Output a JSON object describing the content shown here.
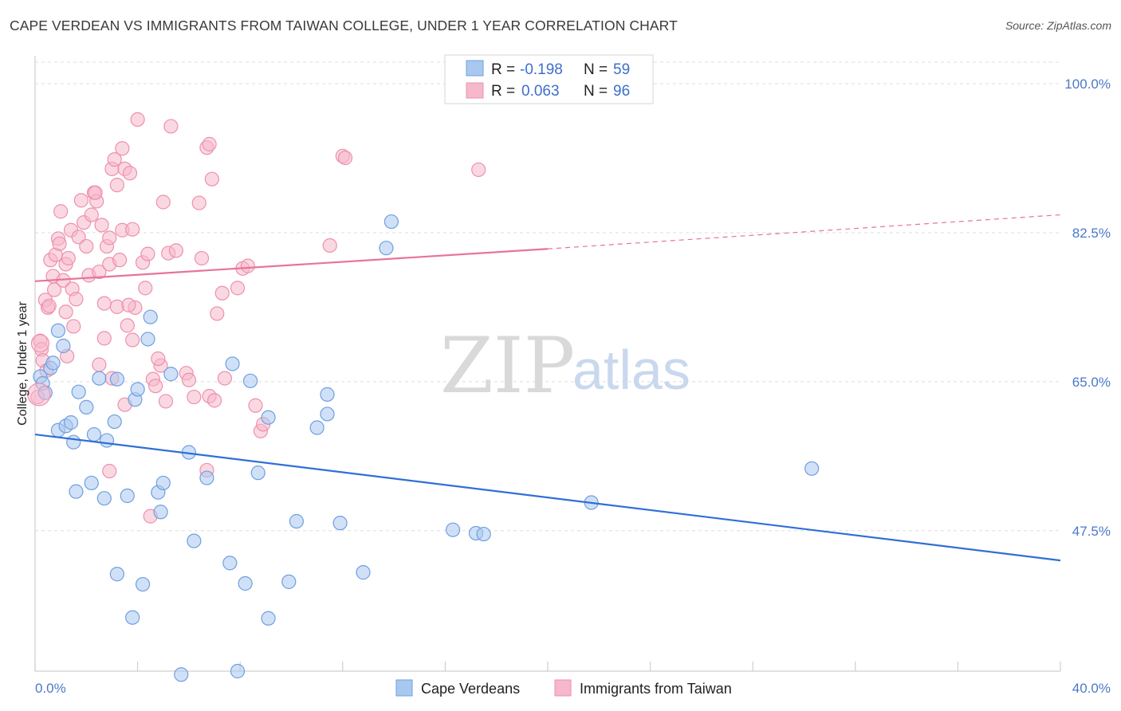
{
  "header": {
    "title": "CAPE VERDEAN VS IMMIGRANTS FROM TAIWAN COLLEGE, UNDER 1 YEAR CORRELATION CHART",
    "source": "Source: ZipAtlas.com"
  },
  "watermark": {
    "zip": "ZIP",
    "atlas": "atlas"
  },
  "legend": {
    "rows": [
      {
        "r_label": "R =",
        "r_value": "-0.198",
        "n_label": "N =",
        "n_value": "59",
        "color": "#a9c8f0"
      },
      {
        "r_label": "R =",
        "r_value": "0.063",
        "n_label": "N =",
        "n_value": "96",
        "color": "#f6b8cb"
      }
    ]
  },
  "chart_data": {
    "type": "scatter",
    "title": "CAPE VERDEAN VS IMMIGRANTS FROM TAIWAN COLLEGE, UNDER 1 YEAR CORRELATION CHART",
    "xlabel": "",
    "ylabel": "College, Under 1 year",
    "xlim": [
      0,
      40
    ],
    "ylim": [
      31,
      103
    ],
    "x_tick_labels": [
      "0.0%",
      "40.0%"
    ],
    "y_ticks": [
      47.5,
      65.0,
      82.5,
      100.0
    ],
    "y_tick_labels": [
      "47.5%",
      "65.0%",
      "82.5%",
      "100.0%"
    ],
    "grid": true,
    "series": [
      {
        "name": "Cape Verdeans",
        "color": "#a9c8f0",
        "edge": "#6f9fe0",
        "trend": {
          "x0": 0,
          "y0": 58.8,
          "x1": 40,
          "y1": 44.0,
          "color": "#2f6fd6"
        },
        "points": [
          [
            0.2,
            65.6
          ],
          [
            0.3,
            64.8
          ],
          [
            0.4,
            63.7
          ],
          [
            0.6,
            66.6
          ],
          [
            0.7,
            67.2
          ],
          [
            0.9,
            71.0
          ],
          [
            0.9,
            59.3
          ],
          [
            1.1,
            69.2
          ],
          [
            1.2,
            59.8
          ],
          [
            1.4,
            60.2
          ],
          [
            1.5,
            57.9
          ],
          [
            1.6,
            52.1
          ],
          [
            1.7,
            63.8
          ],
          [
            2.0,
            62.0
          ],
          [
            2.2,
            53.1
          ],
          [
            2.3,
            58.8
          ],
          [
            2.5,
            65.4
          ],
          [
            2.7,
            51.3
          ],
          [
            2.8,
            58.1
          ],
          [
            3.1,
            60.3
          ],
          [
            3.2,
            65.3
          ],
          [
            3.2,
            42.4
          ],
          [
            3.6,
            51.6
          ],
          [
            3.8,
            37.3
          ],
          [
            3.9,
            62.9
          ],
          [
            4.0,
            64.1
          ],
          [
            4.2,
            41.2
          ],
          [
            4.4,
            70.0
          ],
          [
            4.5,
            72.6
          ],
          [
            4.8,
            52.0
          ],
          [
            4.9,
            49.7
          ],
          [
            5.0,
            53.1
          ],
          [
            5.3,
            65.9
          ],
          [
            6.0,
            56.7
          ],
          [
            6.2,
            46.3
          ],
          [
            6.7,
            53.7
          ],
          [
            7.6,
            43.7
          ],
          [
            7.7,
            67.1
          ],
          [
            7.9,
            31.0
          ],
          [
            8.2,
            41.3
          ],
          [
            8.4,
            65.1
          ],
          [
            8.7,
            54.3
          ],
          [
            9.1,
            60.8
          ],
          [
            9.1,
            37.2
          ],
          [
            9.9,
            41.5
          ],
          [
            10.2,
            48.6
          ],
          [
            11.0,
            59.6
          ],
          [
            11.4,
            63.5
          ],
          [
            11.4,
            61.2
          ],
          [
            11.9,
            48.4
          ],
          [
            12.8,
            42.6
          ],
          [
            13.7,
            80.7
          ],
          [
            13.9,
            83.8
          ],
          [
            16.3,
            47.6
          ],
          [
            17.2,
            47.2
          ],
          [
            17.5,
            47.1
          ],
          [
            21.7,
            50.8
          ],
          [
            30.3,
            54.8
          ],
          [
            5.7,
            30.6
          ]
        ]
      },
      {
        "name": "Immigrants from Taiwan",
        "color": "#f6b8cb",
        "edge": "#ee90ae",
        "trend": {
          "x0": 0,
          "y0": 76.8,
          "x1": 20,
          "y1": 80.6,
          "dash_x1": 40,
          "dash_y1": 84.6,
          "color": "#e8739a"
        },
        "points": [
          [
            0.1,
            63.2
          ],
          [
            0.2,
            69.8
          ],
          [
            0.25,
            68.8
          ],
          [
            0.3,
            67.5
          ],
          [
            0.4,
            74.6
          ],
          [
            0.5,
            73.7
          ],
          [
            0.55,
            73.9
          ],
          [
            0.6,
            79.3
          ],
          [
            0.7,
            77.4
          ],
          [
            0.75,
            75.8
          ],
          [
            0.8,
            79.9
          ],
          [
            0.9,
            81.8
          ],
          [
            1.0,
            85.0
          ],
          [
            1.1,
            76.9
          ],
          [
            1.2,
            73.2
          ],
          [
            1.2,
            78.8
          ],
          [
            1.3,
            79.5
          ],
          [
            1.4,
            82.8
          ],
          [
            1.45,
            75.9
          ],
          [
            1.5,
            71.5
          ],
          [
            1.6,
            74.7
          ],
          [
            1.7,
            82.0
          ],
          [
            1.8,
            86.3
          ],
          [
            1.9,
            83.7
          ],
          [
            2.0,
            80.9
          ],
          [
            2.1,
            77.5
          ],
          [
            2.2,
            84.6
          ],
          [
            2.3,
            87.2
          ],
          [
            2.4,
            86.2
          ],
          [
            2.5,
            77.9
          ],
          [
            2.5,
            67.0
          ],
          [
            2.6,
            83.4
          ],
          [
            2.7,
            70.1
          ],
          [
            2.7,
            74.2
          ],
          [
            2.8,
            80.9
          ],
          [
            2.9,
            54.5
          ],
          [
            2.9,
            78.8
          ],
          [
            2.9,
            81.9
          ],
          [
            3.0,
            90.0
          ],
          [
            3.0,
            65.4
          ],
          [
            3.1,
            91.1
          ],
          [
            3.2,
            88.1
          ],
          [
            3.2,
            73.8
          ],
          [
            3.3,
            79.3
          ],
          [
            3.4,
            82.8
          ],
          [
            3.4,
            92.4
          ],
          [
            3.5,
            90.0
          ],
          [
            3.5,
            62.3
          ],
          [
            3.6,
            71.6
          ],
          [
            3.7,
            89.5
          ],
          [
            3.8,
            69.9
          ],
          [
            3.8,
            82.9
          ],
          [
            3.9,
            73.7
          ],
          [
            4.0,
            95.8
          ],
          [
            4.2,
            79.0
          ],
          [
            4.3,
            76.0
          ],
          [
            4.4,
            80.0
          ],
          [
            4.5,
            49.2
          ],
          [
            4.6,
            65.3
          ],
          [
            4.7,
            64.5
          ],
          [
            4.9,
            66.9
          ],
          [
            5.0,
            86.1
          ],
          [
            5.1,
            62.7
          ],
          [
            5.2,
            80.1
          ],
          [
            5.3,
            95.0
          ],
          [
            5.5,
            80.4
          ],
          [
            5.9,
            66.0
          ],
          [
            6.0,
            65.2
          ],
          [
            6.2,
            63.2
          ],
          [
            6.4,
            86.0
          ],
          [
            6.5,
            79.5
          ],
          [
            6.7,
            54.6
          ],
          [
            6.7,
            92.5
          ],
          [
            6.8,
            92.9
          ],
          [
            6.8,
            63.3
          ],
          [
            6.9,
            88.8
          ],
          [
            7.0,
            62.8
          ],
          [
            7.1,
            73.0
          ],
          [
            7.3,
            75.4
          ],
          [
            7.4,
            65.4
          ],
          [
            7.9,
            76.0
          ],
          [
            8.1,
            78.3
          ],
          [
            8.3,
            78.6
          ],
          [
            8.6,
            62.2
          ],
          [
            8.8,
            59.2
          ],
          [
            8.9,
            60.0
          ],
          [
            11.5,
            81.0
          ],
          [
            12.0,
            91.5
          ],
          [
            12.1,
            91.3
          ],
          [
            17.3,
            89.9
          ],
          [
            2.35,
            87.2
          ],
          [
            0.45,
            66.3
          ],
          [
            3.65,
            74.0
          ],
          [
            1.25,
            68.0
          ],
          [
            4.8,
            67.7
          ],
          [
            0.95,
            81.2
          ]
        ]
      }
    ]
  },
  "bottom_legend": {
    "items": [
      {
        "label": "Cape Verdeans",
        "color": "#a9c8f0"
      },
      {
        "label": "Immigrants from Taiwan",
        "color": "#f6b8cb"
      }
    ]
  }
}
